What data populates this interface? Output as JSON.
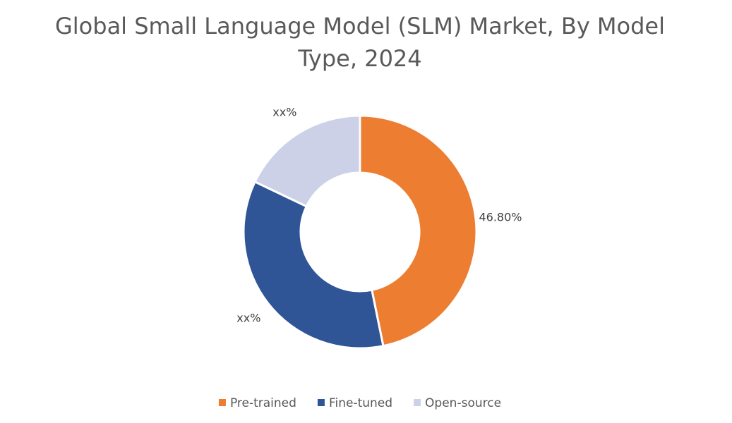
{
  "chart_data": {
    "type": "donut",
    "title": "Global Small Language Model (SLM) Market, By Model Type, 2024",
    "categories": [
      "Pre-trained",
      "Fine-tuned",
      "Open-source"
    ],
    "values": [
      46.8,
      35.3,
      17.9
    ],
    "value_labels": [
      "46.80%",
      "xx%",
      "xx%"
    ],
    "colors": [
      "#ED7D31",
      "#2F5597",
      "#CDD1E8"
    ],
    "legend": "bottom"
  }
}
